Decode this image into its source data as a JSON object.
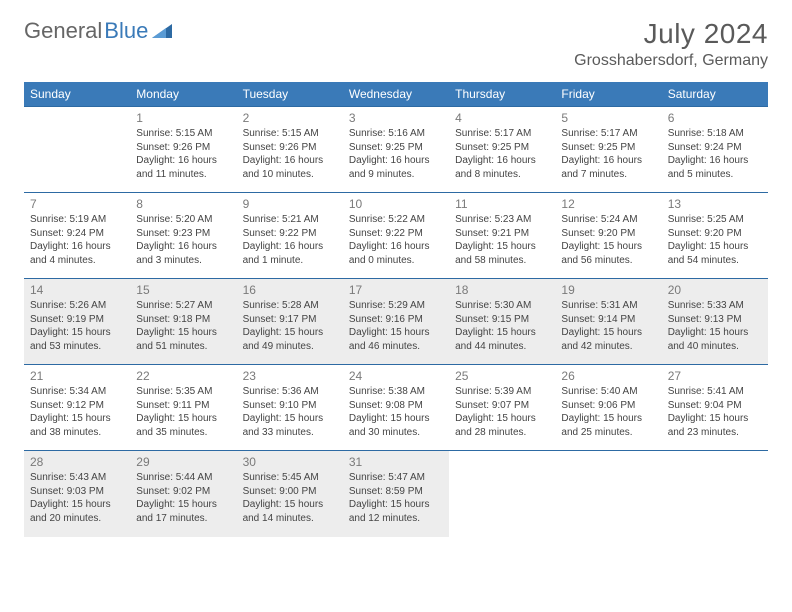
{
  "brand": {
    "part1": "General",
    "part2": "Blue"
  },
  "title": "July 2024",
  "location": "Grosshabersdorf, Germany",
  "colors": {
    "header_bg": "#3a7ab8",
    "header_text": "#ffffff",
    "rule": "#2d6aa3",
    "gray_row": "#ededed",
    "text": "#444444",
    "daynum": "#7a7a7a",
    "title_text": "#5a5a5a"
  },
  "dayHeaders": [
    "Sunday",
    "Monday",
    "Tuesday",
    "Wednesday",
    "Thursday",
    "Friday",
    "Saturday"
  ],
  "weeks": [
    {
      "shaded": false,
      "days": [
        null,
        {
          "n": "1",
          "sr": "5:15 AM",
          "ss": "9:26 PM",
          "dl": "16 hours and 11 minutes."
        },
        {
          "n": "2",
          "sr": "5:15 AM",
          "ss": "9:26 PM",
          "dl": "16 hours and 10 minutes."
        },
        {
          "n": "3",
          "sr": "5:16 AM",
          "ss": "9:25 PM",
          "dl": "16 hours and 9 minutes."
        },
        {
          "n": "4",
          "sr": "5:17 AM",
          "ss": "9:25 PM",
          "dl": "16 hours and 8 minutes."
        },
        {
          "n": "5",
          "sr": "5:17 AM",
          "ss": "9:25 PM",
          "dl": "16 hours and 7 minutes."
        },
        {
          "n": "6",
          "sr": "5:18 AM",
          "ss": "9:24 PM",
          "dl": "16 hours and 5 minutes."
        }
      ]
    },
    {
      "shaded": false,
      "days": [
        {
          "n": "7",
          "sr": "5:19 AM",
          "ss": "9:24 PM",
          "dl": "16 hours and 4 minutes."
        },
        {
          "n": "8",
          "sr": "5:20 AM",
          "ss": "9:23 PM",
          "dl": "16 hours and 3 minutes."
        },
        {
          "n": "9",
          "sr": "5:21 AM",
          "ss": "9:22 PM",
          "dl": "16 hours and 1 minute."
        },
        {
          "n": "10",
          "sr": "5:22 AM",
          "ss": "9:22 PM",
          "dl": "16 hours and 0 minutes."
        },
        {
          "n": "11",
          "sr": "5:23 AM",
          "ss": "9:21 PM",
          "dl": "15 hours and 58 minutes."
        },
        {
          "n": "12",
          "sr": "5:24 AM",
          "ss": "9:20 PM",
          "dl": "15 hours and 56 minutes."
        },
        {
          "n": "13",
          "sr": "5:25 AM",
          "ss": "9:20 PM",
          "dl": "15 hours and 54 minutes."
        }
      ]
    },
    {
      "shaded": true,
      "days": [
        {
          "n": "14",
          "sr": "5:26 AM",
          "ss": "9:19 PM",
          "dl": "15 hours and 53 minutes."
        },
        {
          "n": "15",
          "sr": "5:27 AM",
          "ss": "9:18 PM",
          "dl": "15 hours and 51 minutes."
        },
        {
          "n": "16",
          "sr": "5:28 AM",
          "ss": "9:17 PM",
          "dl": "15 hours and 49 minutes."
        },
        {
          "n": "17",
          "sr": "5:29 AM",
          "ss": "9:16 PM",
          "dl": "15 hours and 46 minutes."
        },
        {
          "n": "18",
          "sr": "5:30 AM",
          "ss": "9:15 PM",
          "dl": "15 hours and 44 minutes."
        },
        {
          "n": "19",
          "sr": "5:31 AM",
          "ss": "9:14 PM",
          "dl": "15 hours and 42 minutes."
        },
        {
          "n": "20",
          "sr": "5:33 AM",
          "ss": "9:13 PM",
          "dl": "15 hours and 40 minutes."
        }
      ]
    },
    {
      "shaded": false,
      "days": [
        {
          "n": "21",
          "sr": "5:34 AM",
          "ss": "9:12 PM",
          "dl": "15 hours and 38 minutes."
        },
        {
          "n": "22",
          "sr": "5:35 AM",
          "ss": "9:11 PM",
          "dl": "15 hours and 35 minutes."
        },
        {
          "n": "23",
          "sr": "5:36 AM",
          "ss": "9:10 PM",
          "dl": "15 hours and 33 minutes."
        },
        {
          "n": "24",
          "sr": "5:38 AM",
          "ss": "9:08 PM",
          "dl": "15 hours and 30 minutes."
        },
        {
          "n": "25",
          "sr": "5:39 AM",
          "ss": "9:07 PM",
          "dl": "15 hours and 28 minutes."
        },
        {
          "n": "26",
          "sr": "5:40 AM",
          "ss": "9:06 PM",
          "dl": "15 hours and 25 minutes."
        },
        {
          "n": "27",
          "sr": "5:41 AM",
          "ss": "9:04 PM",
          "dl": "15 hours and 23 minutes."
        }
      ]
    },
    {
      "shaded": true,
      "days": [
        {
          "n": "28",
          "sr": "5:43 AM",
          "ss": "9:03 PM",
          "dl": "15 hours and 20 minutes."
        },
        {
          "n": "29",
          "sr": "5:44 AM",
          "ss": "9:02 PM",
          "dl": "15 hours and 17 minutes."
        },
        {
          "n": "30",
          "sr": "5:45 AM",
          "ss": "9:00 PM",
          "dl": "15 hours and 14 minutes."
        },
        {
          "n": "31",
          "sr": "5:47 AM",
          "ss": "8:59 PM",
          "dl": "15 hours and 12 minutes."
        },
        null,
        null,
        null
      ]
    }
  ],
  "labels": {
    "sunrise": "Sunrise: ",
    "sunset": "Sunset: ",
    "daylight": "Daylight: "
  }
}
